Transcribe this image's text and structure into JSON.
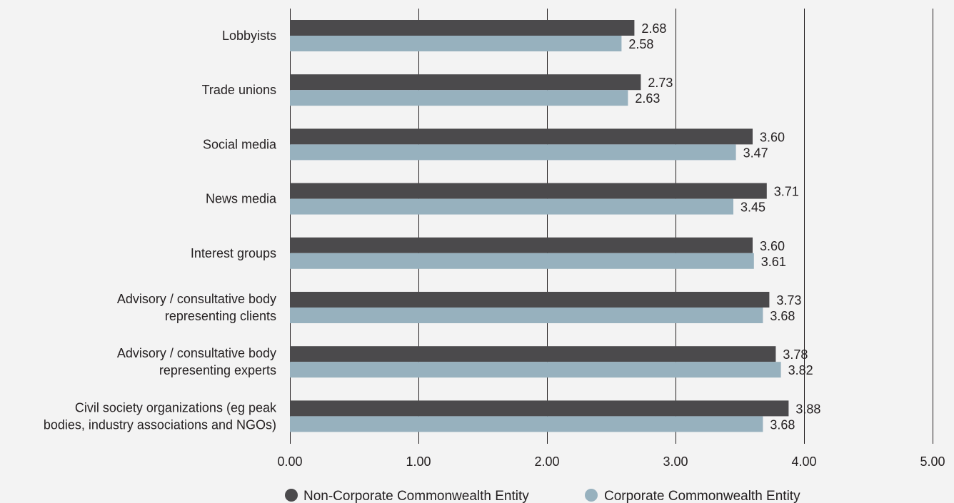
{
  "chart_data": {
    "type": "bar",
    "orientation": "horizontal",
    "title": "",
    "xlabel": "",
    "ylabel": "",
    "xlim": [
      0,
      5
    ],
    "ticks": [
      {
        "value": 0,
        "label": "0.00"
      },
      {
        "value": 1,
        "label": "1.00"
      },
      {
        "value": 2,
        "label": "2.00"
      },
      {
        "value": 3,
        "label": "3.00"
      },
      {
        "value": 4,
        "label": "4.00"
      },
      {
        "value": 5,
        "label": "5.00"
      }
    ],
    "grid": "vertical",
    "legend_position": "bottom",
    "categories": [
      [
        "Lobbyists"
      ],
      [
        "Trade unions"
      ],
      [
        "Social media"
      ],
      [
        "News media"
      ],
      [
        "Interest groups"
      ],
      [
        "Advisory / consultative body",
        "representing clients"
      ],
      [
        "Advisory / consultative body",
        "representing experts"
      ],
      [
        "Civil society organizations (eg peak",
        "bodies, industry associations and NGOs)"
      ]
    ],
    "series": [
      {
        "name": "Non-Corporate Commonwealth Entity",
        "color": "#4b4a4c",
        "values": [
          2.68,
          2.73,
          3.6,
          3.71,
          3.6,
          3.73,
          3.78,
          3.88
        ],
        "labels": [
          "2.68",
          "2.73",
          "3.60",
          "3.71",
          "3.60",
          "3.73",
          "3.78",
          "3.88"
        ]
      },
      {
        "name": "Corporate Commonwealth Entity",
        "color": "#97b1be",
        "values": [
          2.58,
          2.63,
          3.47,
          3.45,
          3.61,
          3.68,
          3.82,
          3.68
        ],
        "labels": [
          "2.58",
          "2.63",
          "3.47",
          "3.45",
          "3.61",
          "3.68",
          "3.82",
          "3.68"
        ]
      }
    ],
    "colors": {
      "background": "#f3f3f3",
      "gridline": "#231f20",
      "text": "#231f20"
    }
  }
}
